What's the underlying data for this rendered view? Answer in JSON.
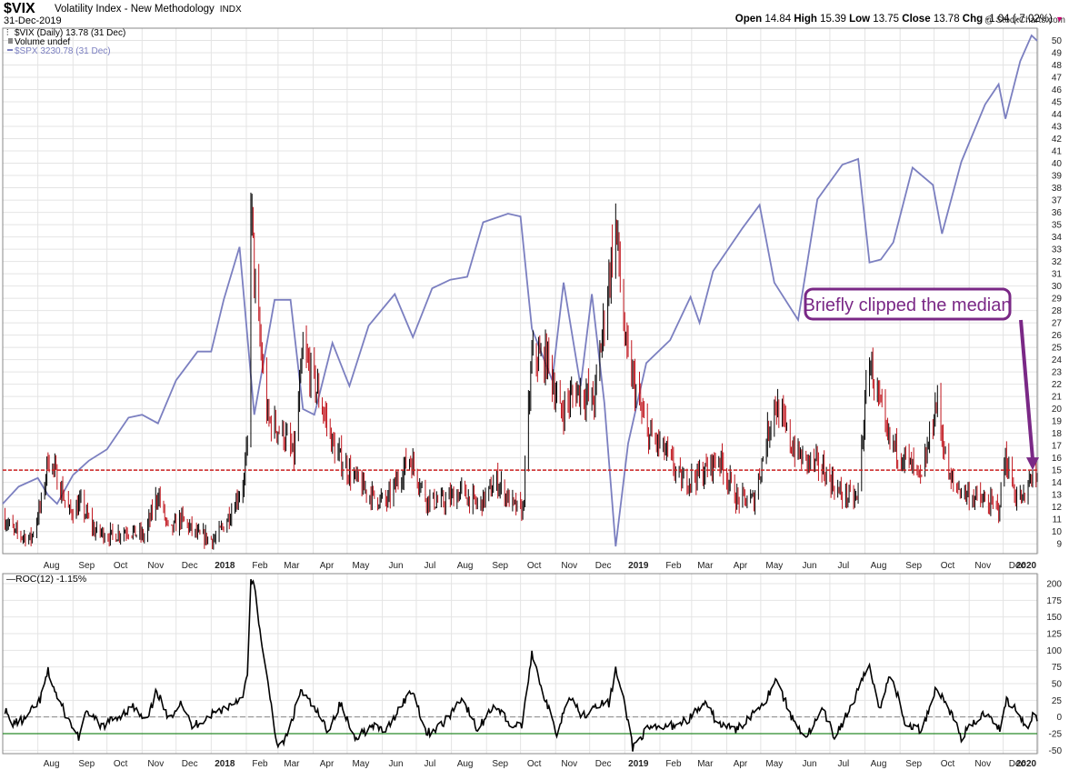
{
  "header": {
    "ticker": "$VIX",
    "title": "Volatility Index - New Methodology",
    "exchange": "INDX",
    "date": "31-Dec-2019",
    "copyright": "@ StockCharts.com",
    "quote": {
      "open_label": "Open",
      "open": "14.84",
      "high_label": "High",
      "high": "15.39",
      "low_label": "Low",
      "low": "13.75",
      "close_label": "Close",
      "close": "13.78",
      "chg_label": "Chg",
      "chg": "-1.04 (-7.02%)"
    }
  },
  "colors": {
    "up_bar": "#000000",
    "down_bar": "#c0141c",
    "spx_line": "#7b7fc0",
    "median_line": "#cc1f1f",
    "annotation": "#7a2886",
    "roc_line": "#000000",
    "roc_threshold": "#2a8a2a",
    "grid": "#e4e4e4"
  },
  "legend": {
    "vix": "$VIX (Daily) 13.78 (31 Dec)",
    "volume": "Volume undef",
    "spx": "$SPX 3230.78 (31 Dec)"
  },
  "annotation": {
    "text": "Briefly clipped the median",
    "arrow_target_date": "2019-12-27",
    "arrow_target_value": 15
  },
  "chart_data": [
    {
      "type": "ohlc",
      "panel": "main",
      "x_range": [
        "2017-07-01",
        "2019-12-31"
      ],
      "ylim": [
        8.2,
        51
      ],
      "y_ticks": [
        9,
        10,
        11,
        12,
        13,
        14,
        15,
        16,
        17,
        18,
        19,
        20,
        21,
        22,
        23,
        24,
        25,
        26,
        27,
        28,
        29,
        30,
        31,
        32,
        33,
        34,
        35,
        36,
        37,
        38,
        39,
        40,
        41,
        42,
        43,
        44,
        45,
        46,
        47,
        48,
        49,
        50
      ],
      "x_tick_labels": [
        {
          "date": "2017-08-01",
          "label": "Aug"
        },
        {
          "date": "2017-09-01",
          "label": "Sep"
        },
        {
          "date": "2017-10-01",
          "label": "Oct"
        },
        {
          "date": "2017-11-01",
          "label": "Nov"
        },
        {
          "date": "2017-12-01",
          "label": "Dec"
        },
        {
          "date": "2018-01-01",
          "label": "2018"
        },
        {
          "date": "2018-02-01",
          "label": "Feb"
        },
        {
          "date": "2018-03-01",
          "label": "Mar"
        },
        {
          "date": "2018-04-01",
          "label": "Apr"
        },
        {
          "date": "2018-05-01",
          "label": "May"
        },
        {
          "date": "2018-06-01",
          "label": "Jun"
        },
        {
          "date": "2018-07-01",
          "label": "Jul"
        },
        {
          "date": "2018-08-01",
          "label": "Aug"
        },
        {
          "date": "2018-09-01",
          "label": "Sep"
        },
        {
          "date": "2018-10-01",
          "label": "Oct"
        },
        {
          "date": "2018-11-01",
          "label": "Nov"
        },
        {
          "date": "2018-12-01",
          "label": "Dec"
        },
        {
          "date": "2019-01-01",
          "label": "2019"
        },
        {
          "date": "2019-02-01",
          "label": "Feb"
        },
        {
          "date": "2019-03-01",
          "label": "Mar"
        },
        {
          "date": "2019-04-01",
          "label": "Apr"
        },
        {
          "date": "2019-05-01",
          "label": "May"
        },
        {
          "date": "2019-06-01",
          "label": "Jun"
        },
        {
          "date": "2019-07-01",
          "label": "Jul"
        },
        {
          "date": "2019-08-01",
          "label": "Aug"
        },
        {
          "date": "2019-09-01",
          "label": "Sep"
        },
        {
          "date": "2019-10-01",
          "label": "Oct"
        },
        {
          "date": "2019-11-01",
          "label": "Nov"
        },
        {
          "date": "2019-12-01",
          "label": "Dec"
        },
        {
          "date": "2020-01-01",
          "label": "2020"
        }
      ],
      "median": 15,
      "vix_close_path": [
        [
          "2017-07-01",
          11.2
        ],
        [
          "2017-07-12",
          9.8
        ],
        [
          "2017-07-26",
          9.4
        ],
        [
          "2017-08-05",
          12.5
        ],
        [
          "2017-08-10",
          16.0
        ],
        [
          "2017-08-18",
          14.3
        ],
        [
          "2017-08-29",
          11.5
        ],
        [
          "2017-09-08",
          12.1
        ],
        [
          "2017-09-20",
          10.0
        ],
        [
          "2017-10-05",
          9.6
        ],
        [
          "2017-10-20",
          10.1
        ],
        [
          "2017-11-03",
          9.5
        ],
        [
          "2017-11-15",
          13.0
        ],
        [
          "2017-11-25",
          9.8
        ],
        [
          "2017-12-05",
          11.0
        ],
        [
          "2017-12-20",
          9.6
        ],
        [
          "2018-01-05",
          9.3
        ],
        [
          "2018-01-18",
          11.5
        ],
        [
          "2018-01-30",
          14.0
        ],
        [
          "2018-02-02",
          17.0
        ],
        [
          "2018-02-05",
          37.0
        ],
        [
          "2018-02-09",
          29.0
        ],
        [
          "2018-02-20",
          19.0
        ],
        [
          "2018-03-05",
          18.0
        ],
        [
          "2018-03-15",
          16.0
        ],
        [
          "2018-03-23",
          24.5
        ],
        [
          "2018-04-06",
          21.0
        ],
        [
          "2018-04-20",
          16.5
        ],
        [
          "2018-05-05",
          14.5
        ],
        [
          "2018-05-20",
          13.0
        ],
        [
          "2018-06-05",
          12.3
        ],
        [
          "2018-06-25",
          16.0
        ],
        [
          "2018-07-10",
          12.6
        ],
        [
          "2018-07-25",
          12.3
        ],
        [
          "2018-08-10",
          13.2
        ],
        [
          "2018-08-25",
          12.0
        ],
        [
          "2018-09-10",
          14.0
        ],
        [
          "2018-09-25",
          12.0
        ],
        [
          "2018-10-03",
          11.6
        ],
        [
          "2018-10-11",
          24.0
        ],
        [
          "2018-10-25",
          24.0
        ],
        [
          "2018-11-05",
          19.5
        ],
        [
          "2018-11-20",
          21.5
        ],
        [
          "2018-12-05",
          20.5
        ],
        [
          "2018-12-24",
          35.0
        ],
        [
          "2019-01-02",
          24.5
        ],
        [
          "2019-01-20",
          18.0
        ],
        [
          "2019-02-05",
          16.5
        ],
        [
          "2019-02-20",
          14.0
        ],
        [
          "2019-03-10",
          14.6
        ],
        [
          "2019-03-25",
          16.0
        ],
        [
          "2019-04-10",
          12.5
        ],
        [
          "2019-04-25",
          12.5
        ],
        [
          "2019-05-13",
          20.5
        ],
        [
          "2019-05-28",
          17.0
        ],
        [
          "2019-06-05",
          16.0
        ],
        [
          "2019-06-25",
          15.0
        ],
        [
          "2019-07-10",
          13.0
        ],
        [
          "2019-07-25",
          12.5
        ],
        [
          "2019-08-05",
          24.0
        ],
        [
          "2019-08-20",
          17.5
        ],
        [
          "2019-09-05",
          16.0
        ],
        [
          "2019-09-20",
          14.0
        ],
        [
          "2019-10-03",
          20.5
        ],
        [
          "2019-10-15",
          14.0
        ],
        [
          "2019-10-30",
          13.0
        ],
        [
          "2019-11-15",
          12.3
        ],
        [
          "2019-11-27",
          11.8
        ],
        [
          "2019-12-03",
          16.0
        ],
        [
          "2019-12-12",
          12.8
        ],
        [
          "2019-12-20",
          12.5
        ],
        [
          "2019-12-27",
          15.0
        ],
        [
          "2019-12-31",
          13.78
        ]
      ],
      "spx_overlay": {
        "name": "$SPX",
        "last": 3230.78,
        "path": [
          [
            "2017-07-01",
            2425
          ],
          [
            "2017-07-15",
            2455
          ],
          [
            "2017-08-01",
            2470
          ],
          [
            "2017-08-10",
            2440
          ],
          [
            "2017-08-18",
            2425
          ],
          [
            "2017-09-01",
            2475
          ],
          [
            "2017-09-15",
            2500
          ],
          [
            "2017-10-01",
            2520
          ],
          [
            "2017-10-20",
            2575
          ],
          [
            "2017-11-01",
            2580
          ],
          [
            "2017-11-15",
            2565
          ],
          [
            "2017-12-01",
            2640
          ],
          [
            "2017-12-20",
            2690
          ],
          [
            "2018-01-01",
            2690
          ],
          [
            "2018-01-12",
            2780
          ],
          [
            "2018-01-26",
            2872
          ],
          [
            "2018-02-08",
            2580
          ],
          [
            "2018-02-26",
            2780
          ],
          [
            "2018-03-12",
            2780
          ],
          [
            "2018-03-23",
            2590
          ],
          [
            "2018-04-02",
            2580
          ],
          [
            "2018-04-18",
            2705
          ],
          [
            "2018-05-03",
            2630
          ],
          [
            "2018-05-20",
            2735
          ],
          [
            "2018-06-12",
            2790
          ],
          [
            "2018-06-28",
            2715
          ],
          [
            "2018-07-15",
            2800
          ],
          [
            "2018-07-31",
            2815
          ],
          [
            "2018-08-15",
            2820
          ],
          [
            "2018-08-29",
            2915
          ],
          [
            "2018-09-20",
            2930
          ],
          [
            "2018-10-01",
            2925
          ],
          [
            "2018-10-11",
            2730
          ],
          [
            "2018-10-29",
            2640
          ],
          [
            "2018-11-08",
            2810
          ],
          [
            "2018-11-23",
            2630
          ],
          [
            "2018-12-03",
            2790
          ],
          [
            "2018-12-14",
            2600
          ],
          [
            "2018-12-24",
            2351
          ],
          [
            "2019-01-04",
            2530
          ],
          [
            "2019-01-20",
            2670
          ],
          [
            "2019-02-10",
            2710
          ],
          [
            "2019-02-28",
            2785
          ],
          [
            "2019-03-08",
            2740
          ],
          [
            "2019-03-20",
            2830
          ],
          [
            "2019-04-15",
            2905
          ],
          [
            "2019-04-30",
            2945
          ],
          [
            "2019-05-13",
            2810
          ],
          [
            "2019-06-03",
            2745
          ],
          [
            "2019-06-20",
            2955
          ],
          [
            "2019-07-12",
            3015
          ],
          [
            "2019-07-26",
            3025
          ],
          [
            "2019-08-05",
            2845
          ],
          [
            "2019-08-15",
            2850
          ],
          [
            "2019-08-26",
            2880
          ],
          [
            "2019-09-12",
            3010
          ],
          [
            "2019-09-30",
            2980
          ],
          [
            "2019-10-08",
            2895
          ],
          [
            "2019-10-25",
            3020
          ],
          [
            "2019-11-15",
            3120
          ],
          [
            "2019-11-27",
            3155
          ],
          [
            "2019-12-03",
            3095
          ],
          [
            "2019-12-16",
            3195
          ],
          [
            "2019-12-26",
            3240
          ],
          [
            "2019-12-31",
            3230.78
          ]
        ]
      }
    },
    {
      "type": "line",
      "panel": "indicator",
      "name": "ROC(12) -1.15%",
      "ylim": [
        -55,
        215
      ],
      "y_ticks": [
        -50,
        -25,
        0,
        25,
        50,
        75,
        100,
        125,
        150,
        175,
        200
      ],
      "zero_line": 0,
      "threshold": -25,
      "last": -1.15,
      "path": [
        [
          "2017-07-01",
          20
        ],
        [
          "2017-07-08",
          -10
        ],
        [
          "2017-07-20",
          -5
        ],
        [
          "2017-08-03",
          25
        ],
        [
          "2017-08-10",
          68
        ],
        [
          "2017-08-18",
          30
        ],
        [
          "2017-08-28",
          -5
        ],
        [
          "2017-09-06",
          -30
        ],
        [
          "2017-09-14",
          10
        ],
        [
          "2017-09-25",
          -15
        ],
        [
          "2017-10-10",
          0
        ],
        [
          "2017-10-24",
          15
        ],
        [
          "2017-11-05",
          -10
        ],
        [
          "2017-11-14",
          40
        ],
        [
          "2017-11-24",
          -5
        ],
        [
          "2017-12-05",
          25
        ],
        [
          "2017-12-15",
          -15
        ],
        [
          "2018-01-02",
          5
        ],
        [
          "2018-01-15",
          15
        ],
        [
          "2018-01-28",
          30
        ],
        [
          "2018-02-02",
          60
        ],
        [
          "2018-02-05",
          205
        ],
        [
          "2018-02-09",
          190
        ],
        [
          "2018-02-15",
          100
        ],
        [
          "2018-02-22",
          30
        ],
        [
          "2018-03-01",
          -50
        ],
        [
          "2018-03-10",
          -25
        ],
        [
          "2018-03-21",
          40
        ],
        [
          "2018-04-03",
          10
        ],
        [
          "2018-04-14",
          -20
        ],
        [
          "2018-04-25",
          20
        ],
        [
          "2018-05-07",
          -30
        ],
        [
          "2018-05-23",
          -15
        ],
        [
          "2018-06-05",
          -20
        ],
        [
          "2018-06-18",
          20
        ],
        [
          "2018-06-28",
          40
        ],
        [
          "2018-07-10",
          -25
        ],
        [
          "2018-07-25",
          -10
        ],
        [
          "2018-08-10",
          30
        ],
        [
          "2018-08-24",
          -20
        ],
        [
          "2018-09-08",
          20
        ],
        [
          "2018-09-24",
          -15
        ],
        [
          "2018-10-03",
          -10
        ],
        [
          "2018-10-11",
          98
        ],
        [
          "2018-10-22",
          30
        ],
        [
          "2018-11-02",
          -25
        ],
        [
          "2018-11-13",
          35
        ],
        [
          "2018-11-25",
          0
        ],
        [
          "2018-12-06",
          20
        ],
        [
          "2018-12-18",
          20
        ],
        [
          "2018-12-24",
          70
        ],
        [
          "2019-01-02",
          10
        ],
        [
          "2019-01-08",
          -45
        ],
        [
          "2019-01-20",
          -20
        ],
        [
          "2019-02-08",
          -15
        ],
        [
          "2019-02-25",
          -5
        ],
        [
          "2019-03-12",
          20
        ],
        [
          "2019-03-25",
          -10
        ],
        [
          "2019-04-10",
          -20
        ],
        [
          "2019-04-26",
          10
        ],
        [
          "2019-05-07",
          30
        ],
        [
          "2019-05-14",
          60
        ],
        [
          "2019-05-28",
          0
        ],
        [
          "2019-06-10",
          -30
        ],
        [
          "2019-06-25",
          10
        ],
        [
          "2019-07-05",
          -30
        ],
        [
          "2019-07-20",
          15
        ],
        [
          "2019-08-05",
          80
        ],
        [
          "2019-08-14",
          10
        ],
        [
          "2019-08-24",
          70
        ],
        [
          "2019-09-05",
          -10
        ],
        [
          "2019-09-20",
          -20
        ],
        [
          "2019-10-03",
          45
        ],
        [
          "2019-10-15",
          10
        ],
        [
          "2019-10-25",
          -30
        ],
        [
          "2019-11-05",
          -10
        ],
        [
          "2019-11-17",
          10
        ],
        [
          "2019-11-28",
          -20
        ],
        [
          "2019-12-04",
          25
        ],
        [
          "2019-12-14",
          10
        ],
        [
          "2019-12-22",
          -20
        ],
        [
          "2019-12-27",
          5
        ],
        [
          "2019-12-31",
          -1.15
        ]
      ]
    }
  ]
}
